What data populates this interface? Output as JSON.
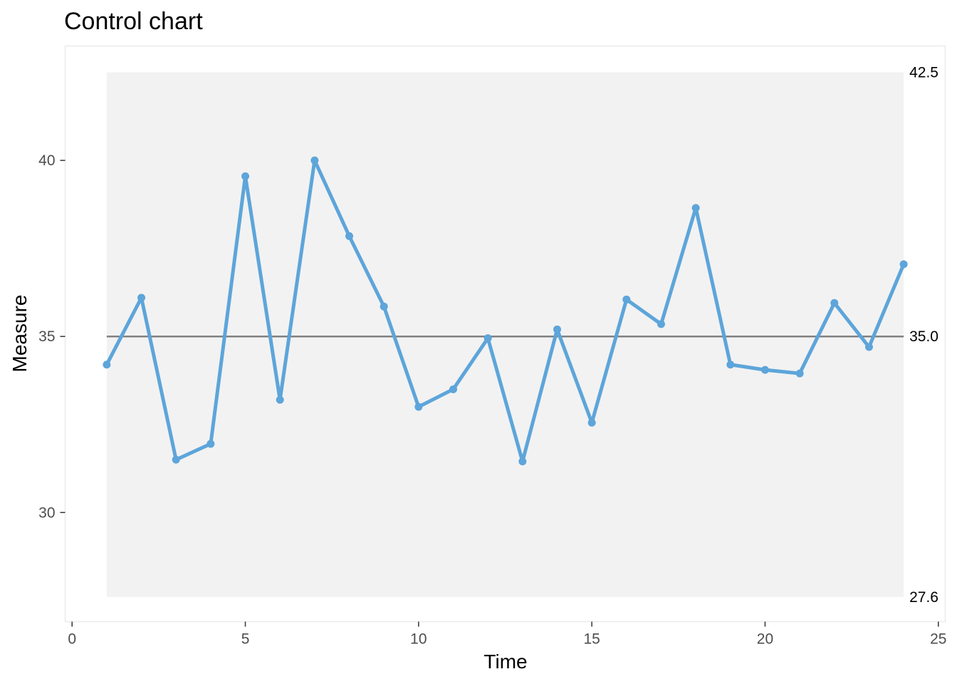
{
  "chart_data": {
    "type": "line",
    "title": "Control chart",
    "xlabel": "Time",
    "ylabel": "Measure",
    "xlim": [
      -0.2,
      25.2
    ],
    "ylim": [
      26.9,
      43.25
    ],
    "x_ticks": [
      0,
      5,
      10,
      15,
      20,
      25
    ],
    "y_ticks": [
      30,
      35,
      40
    ],
    "grid": false,
    "control_band": {
      "lower": 27.6,
      "upper": 42.5,
      "x_start": 1,
      "x_end": 24
    },
    "center_line": 35.0,
    "limit_labels": [
      "42.5",
      "35.0",
      "27.6"
    ],
    "colors": {
      "series": "#5da5da",
      "band": "#f2f2f2",
      "center_line": "#808080",
      "panel_border": "#ebebeb"
    },
    "series": [
      {
        "x": [
          1,
          2,
          3,
          4,
          5,
          6,
          7,
          8,
          9,
          10,
          11,
          12,
          13,
          14,
          15,
          16,
          17,
          18,
          19,
          20,
          21,
          22,
          23,
          24
        ],
        "values": [
          34.2,
          36.1,
          31.5,
          31.95,
          39.55,
          33.2,
          40.0,
          37.85,
          35.85,
          33.0,
          33.5,
          34.95,
          31.45,
          35.2,
          32.55,
          36.05,
          35.35,
          38.65,
          34.2,
          34.05,
          33.95,
          35.95,
          34.7,
          37.05
        ]
      }
    ]
  }
}
